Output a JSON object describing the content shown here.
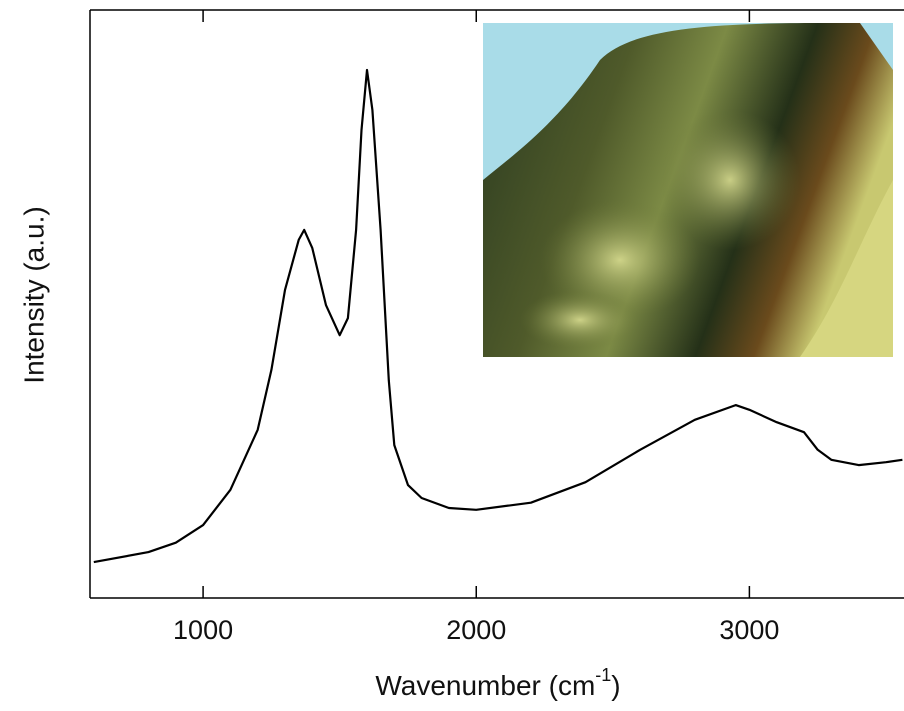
{
  "chart_data": {
    "type": "line",
    "x_label_parts": [
      "Wavenumber (cm",
      "-1",
      ")"
    ],
    "y_label": "Intensity (a.u.)",
    "x": [
      600,
      800,
      900,
      1000,
      1100,
      1200,
      1250,
      1300,
      1350,
      1370,
      1400,
      1450,
      1500,
      1530,
      1560,
      1580,
      1600,
      1620,
      1650,
      1680,
      1700,
      1750,
      1800,
      1900,
      2000,
      2200,
      2400,
      2600,
      2800,
      2950,
      3000,
      3100,
      3200,
      3250,
      3300,
      3400,
      3500,
      3560
    ],
    "values": [
      6.1,
      7.8,
      9.4,
      12.4,
      18.4,
      28.6,
      38.8,
      52.4,
      60.9,
      62.6,
      59.5,
      49.8,
      44.7,
      47.6,
      62.6,
      79.6,
      89.8,
      83,
      62.6,
      37,
      26,
      19.2,
      17,
      15.3,
      15,
      16.2,
      19.7,
      25.2,
      30.3,
      32.8,
      32,
      29.9,
      28.2,
      25.2,
      23.5,
      22.6,
      23.1,
      23.5
    ],
    "color": "#000000",
    "xlim": [
      586,
      3566
    ],
    "xticks": [
      1000,
      2000,
      3000
    ],
    "ylim": [
      0,
      100
    ],
    "grid": false
  }
}
